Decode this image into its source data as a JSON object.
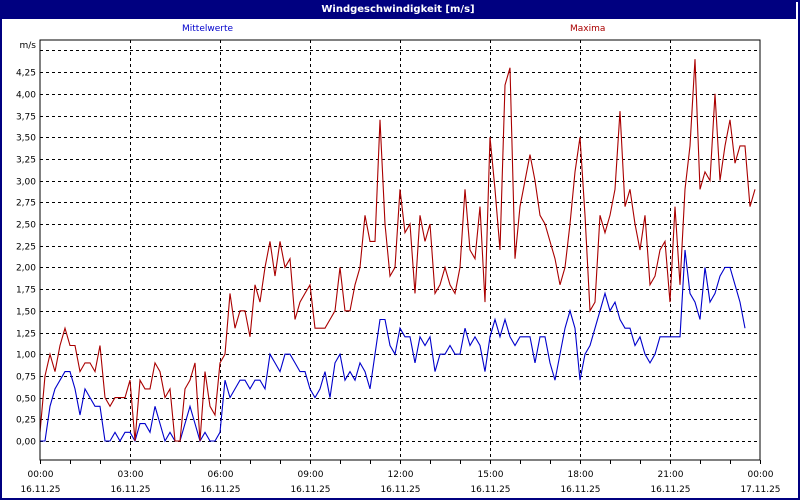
{
  "window": {
    "title": "Windgeschwindigkeit [m/s]"
  },
  "legend": [
    {
      "label": "Mittelwerte",
      "color": "#0000cc"
    },
    {
      "label": "Maxima",
      "color": "#aa0000"
    }
  ],
  "chart_data": {
    "type": "line",
    "title": "Windgeschwindigkeit [m/s]",
    "xlabel": "",
    "ylabel": "m/s",
    "ylim": [
      0,
      4.5
    ],
    "yticks": [
      "0,00",
      "0,25",
      "0,50",
      "0,75",
      "1,00",
      "1,25",
      "1,50",
      "1,75",
      "2,00",
      "2,25",
      "2,50",
      "2,75",
      "3,00",
      "3,25",
      "3,50",
      "3,75",
      "4,00",
      "4,25"
    ],
    "xticks": [
      {
        "time": "00:00",
        "date": "16.11.25"
      },
      {
        "time": "03:00",
        "date": "16.11.25"
      },
      {
        "time": "06:00",
        "date": "16.11.25"
      },
      {
        "time": "09:00",
        "date": "16.11.25"
      },
      {
        "time": "12:00",
        "date": "16.11.25"
      },
      {
        "time": "15:00",
        "date": "16.11.25"
      },
      {
        "time": "18:00",
        "date": "16.11.25"
      },
      {
        "time": "21:00",
        "date": "16.11.25"
      },
      {
        "time": "00:00",
        "date": "17.11.25"
      }
    ],
    "x_interval_minutes": 10,
    "grid": true,
    "legend_position": "top",
    "series": [
      {
        "name": "Mittelwerte",
        "color": "#0000cc",
        "values": [
          0,
          0,
          0.4,
          0.6,
          0.7,
          0.8,
          0.8,
          0.6,
          0.3,
          0.6,
          0.5,
          0.4,
          0.4,
          0,
          0,
          0.1,
          0,
          0.1,
          0.1,
          0,
          0.2,
          0.2,
          0.1,
          0.4,
          0.2,
          0,
          0.1,
          0,
          0,
          0.2,
          0.4,
          0.2,
          0,
          0.1,
          0,
          0,
          0.1,
          0.7,
          0.5,
          0.6,
          0.7,
          0.7,
          0.6,
          0.7,
          0.7,
          0.6,
          1.0,
          0.9,
          0.8,
          1.0,
          1.0,
          0.9,
          0.8,
          0.8,
          0.6,
          0.5,
          0.6,
          0.8,
          0.5,
          0.9,
          1.0,
          0.7,
          0.8,
          0.7,
          0.9,
          0.8,
          0.6,
          1.0,
          1.4,
          1.4,
          1.1,
          1.0,
          1.3,
          1.2,
          1.2,
          0.9,
          1.2,
          1.1,
          1.2,
          0.8,
          1.0,
          1.0,
          1.1,
          1.0,
          1.0,
          1.3,
          1.1,
          1.2,
          1.1,
          0.8,
          1.2,
          1.4,
          1.2,
          1.4,
          1.2,
          1.1,
          1.2,
          1.2,
          1.2,
          0.9,
          1.2,
          1.2,
          0.9,
          0.7,
          1.0,
          1.3,
          1.5,
          1.3,
          0.7,
          1.0,
          1.1,
          1.3,
          1.5,
          1.7,
          1.5,
          1.6,
          1.4,
          1.3,
          1.3,
          1.1,
          1.2,
          1.0,
          0.9,
          1.0,
          1.2,
          1.2,
          1.2,
          1.2,
          1.2,
          2.2,
          1.7,
          1.6,
          1.4,
          2.0,
          1.6,
          1.7,
          1.9,
          2.0,
          2.0,
          1.8,
          1.6,
          1.3
        ]
      },
      {
        "name": "Maxima",
        "color": "#aa0000",
        "values": [
          0.1,
          0.75,
          1.0,
          0.8,
          1.1,
          1.3,
          1.1,
          1.1,
          0.8,
          0.9,
          0.9,
          0.8,
          1.1,
          0.5,
          0.4,
          0.5,
          0.5,
          0.5,
          0.7,
          0,
          0.7,
          0.6,
          0.6,
          0.9,
          0.8,
          0.5,
          0.6,
          0,
          0,
          0.6,
          0.7,
          0.9,
          0,
          0.8,
          0.4,
          0.3,
          0.9,
          1.0,
          1.7,
          1.3,
          1.5,
          1.5,
          1.2,
          1.8,
          1.6,
          2.0,
          2.3,
          1.9,
          2.3,
          2.0,
          2.1,
          1.4,
          1.6,
          1.7,
          1.8,
          1.3,
          1.3,
          1.3,
          1.4,
          1.5,
          2.0,
          1.5,
          1.5,
          1.8,
          2.0,
          2.6,
          2.3,
          2.3,
          3.7,
          2.5,
          1.9,
          2.0,
          2.9,
          2.4,
          2.5,
          1.7,
          2.6,
          2.3,
          2.5,
          1.7,
          1.8,
          2.0,
          1.8,
          1.7,
          2.0,
          2.9,
          2.2,
          2.1,
          2.7,
          1.6,
          3.5,
          2.9,
          2.2,
          4.1,
          4.3,
          2.1,
          2.7,
          3.0,
          3.3,
          3.0,
          2.6,
          2.5,
          2.3,
          2.1,
          1.8,
          2.0,
          2.5,
          3.1,
          3.5,
          2.6,
          1.5,
          1.6,
          2.6,
          2.4,
          2.6,
          2.9,
          3.8,
          2.7,
          2.9,
          2.5,
          2.2,
          2.6,
          1.8,
          1.9,
          2.2,
          2.3,
          1.6,
          2.7,
          1.8,
          2.9,
          3.4,
          4.4,
          2.9,
          3.1,
          3.0,
          4.0,
          3.0,
          3.4,
          3.7,
          3.2,
          3.4,
          3.4,
          2.7,
          2.9
        ]
      }
    ]
  }
}
